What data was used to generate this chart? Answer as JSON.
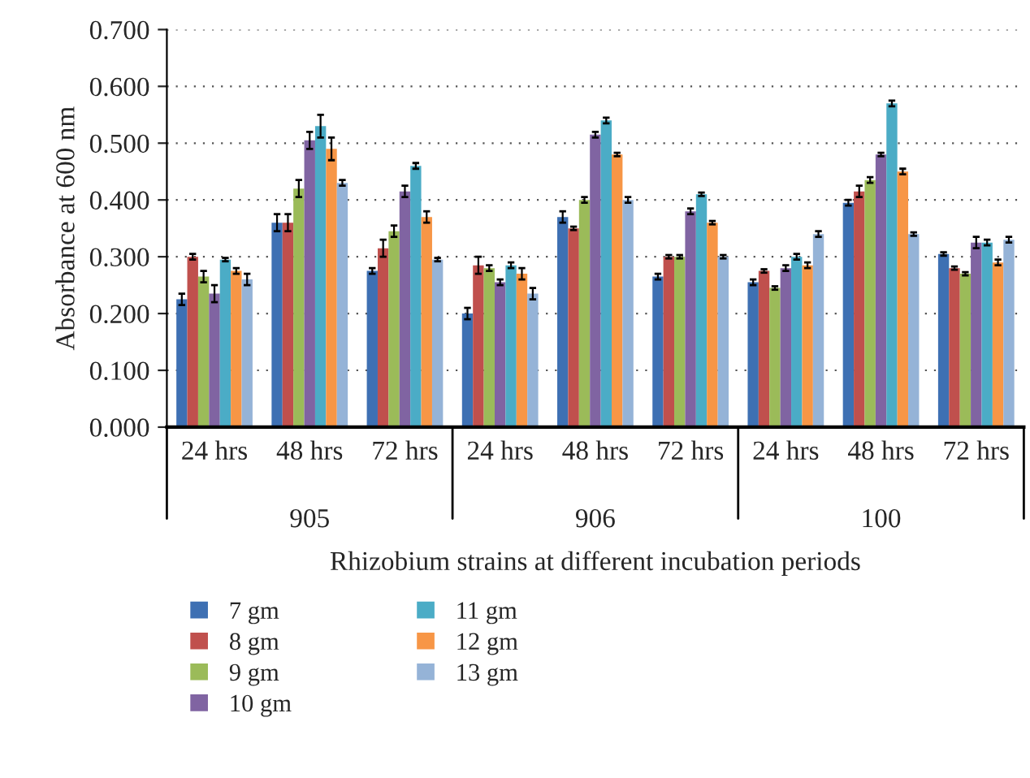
{
  "chart_data": {
    "type": "bar",
    "ylabel": "Absorbance at 600 nm",
    "xlabel": "Rhizobium strains at different incubation periods",
    "categories": [
      "24 hrs",
      "48 hrs",
      "72 hrs",
      "24 hrs",
      "48 hrs",
      "72 hrs",
      "24 hrs",
      "48 hrs",
      "72 hrs"
    ],
    "annotations": [
      "905",
      "906",
      "100"
    ],
    "series": [
      {
        "name": "7 gm",
        "color": "#3e70b3",
        "values": [
          0.225,
          0.36,
          0.275,
          0.2,
          0.37,
          0.265,
          0.255,
          0.395,
          0.305
        ],
        "errors": [
          0.01,
          0.015,
          0.005,
          0.01,
          0.01,
          0.005,
          0.005,
          0.005,
          0.003
        ]
      },
      {
        "name": "8 gm",
        "color": "#c0504d",
        "values": [
          0.3,
          0.36,
          0.315,
          0.285,
          0.35,
          0.3,
          0.275,
          0.415,
          0.28
        ],
        "errors": [
          0.005,
          0.015,
          0.015,
          0.015,
          0.003,
          0.003,
          0.003,
          0.01,
          0.003
        ]
      },
      {
        "name": "9 gm",
        "color": "#9bbb59",
        "values": [
          0.265,
          0.42,
          0.345,
          0.28,
          0.4,
          0.3,
          0.245,
          0.435,
          0.27
        ],
        "errors": [
          0.01,
          0.015,
          0.01,
          0.005,
          0.005,
          0.003,
          0.003,
          0.005,
          0.003
        ]
      },
      {
        "name": "10 gm",
        "color": "#8064a2",
        "values": [
          0.235,
          0.505,
          0.415,
          0.255,
          0.515,
          0.38,
          0.28,
          0.48,
          0.325
        ],
        "errors": [
          0.015,
          0.015,
          0.01,
          0.005,
          0.005,
          0.005,
          0.005,
          0.003,
          0.01
        ]
      },
      {
        "name": "11 gm",
        "color": "#4bacc6",
        "values": [
          0.295,
          0.53,
          0.46,
          0.285,
          0.54,
          0.41,
          0.3,
          0.57,
          0.325
        ],
        "errors": [
          0.003,
          0.02,
          0.005,
          0.005,
          0.005,
          0.003,
          0.005,
          0.005,
          0.005
        ]
      },
      {
        "name": "12 gm",
        "color": "#f79646",
        "values": [
          0.275,
          0.49,
          0.37,
          0.27,
          0.48,
          0.36,
          0.285,
          0.45,
          0.29
        ],
        "errors": [
          0.005,
          0.02,
          0.01,
          0.01,
          0.003,
          0.003,
          0.005,
          0.005,
          0.005
        ]
      },
      {
        "name": "13 gm",
        "color": "#95b3d7",
        "values": [
          0.26,
          0.43,
          0.295,
          0.235,
          0.4,
          0.3,
          0.34,
          0.34,
          0.33
        ],
        "errors": [
          0.01,
          0.005,
          0.003,
          0.01,
          0.005,
          0.003,
          0.005,
          0.003,
          0.005
        ]
      }
    ],
    "ylim": [
      0,
      0.7
    ],
    "yticks": [
      {
        "value": 0,
        "label": "0.000"
      },
      {
        "value": 0.1,
        "label": "0.100"
      },
      {
        "value": 0.2,
        "label": "0.200"
      },
      {
        "value": 0.3,
        "label": "0.300"
      },
      {
        "value": 0.4,
        "label": "0.400"
      },
      {
        "value": 0.5,
        "label": "0.500"
      },
      {
        "value": 0.6,
        "label": "0.600"
      },
      {
        "value": 0.7,
        "label": "0.700"
      }
    ],
    "grid": "y",
    "legend": "bottom"
  }
}
